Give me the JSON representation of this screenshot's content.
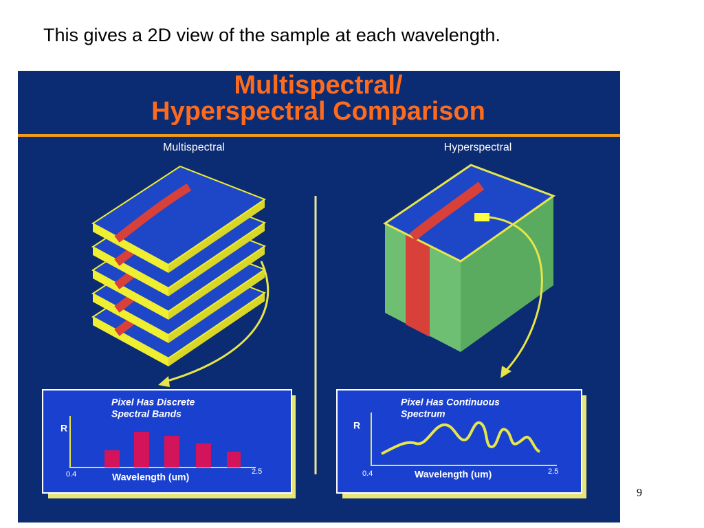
{
  "header": {
    "title": "This gives a 2D view of the sample at each wavelength."
  },
  "figure": {
    "title_lines": [
      "Multispectral/",
      "Hyperspectral Comparison"
    ],
    "panels": [
      {
        "label": "Multispectral",
        "inset": {
          "caption_lines": [
            "Pixel Has Discrete",
            "Spectral Bands"
          ],
          "y_label": "R",
          "x_label": "Wavelength (um)",
          "x_min": 0.4,
          "x_max": 2.5
        }
      },
      {
        "label": "Hyperspectral",
        "inset": {
          "caption_lines": [
            "Pixel Has Continuous",
            "Spectrum"
          ],
          "y_label": "R",
          "x_label": "Wavelength (um)",
          "x_min": 0.4,
          "x_max": 2.5
        }
      }
    ]
  },
  "page_number": 9
}
